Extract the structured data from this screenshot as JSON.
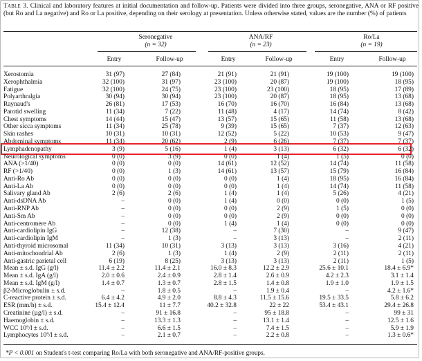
{
  "caption": {
    "label": "Table 3.",
    "text": "Clinical and laboratory features at initial documentation and follow-up. Patients were divided into three groups, seronegative, ANA or RF positive (but Ro and La negative) and Ro or La positive, depending on their serology at presentation. Unless otherwise stated, values are the number (%) of patients"
  },
  "groups": [
    {
      "name": "Seronegative",
      "n": "(n = 32)"
    },
    {
      "name": "ANA/RF",
      "n": "(n = 23)"
    },
    {
      "name": "Ro/La",
      "n": "(n = 19)"
    }
  ],
  "subheaders": [
    "Entry",
    "Follow-up",
    "Entry",
    "Follow-up",
    "Entry",
    "Follow-up"
  ],
  "rows": [
    {
      "label": "Xerostomia",
      "values": [
        "31 (97)",
        "27 (84)",
        "21 (91)",
        "21 (91)",
        "19 (100)",
        "19 (100)"
      ]
    },
    {
      "label": "Xerophthalmia",
      "values": [
        "32 (100)",
        "31 (97)",
        "23 (100)",
        "20 (87)",
        "19 (100)",
        "18 (95)"
      ]
    },
    {
      "label": "Fatigue",
      "values": [
        "32 (100)",
        "24 (75)",
        "23 (100)",
        "23 (100)",
        "18 (95)",
        "17 (89)"
      ]
    },
    {
      "label": "Polyarthralgia",
      "values": [
        "30 (94)",
        "30 (94)",
        "23 (100)",
        "20 (87)",
        "18 (95)",
        "13 (68)"
      ]
    },
    {
      "label": "Raynaud's",
      "values": [
        "26 (81)",
        "17 (53)",
        "16 (70)",
        "16 (70)",
        "16 (84)",
        "13 (68)"
      ]
    },
    {
      "label": "Parotid swelling",
      "values": [
        "11 (34)",
        "7 (22)",
        "11 (48)",
        "4 (17)",
        "14 (74)",
        "8 (42)"
      ]
    },
    {
      "label": "Chest symptoms",
      "values": [
        "14 (44)",
        "15 (47)",
        "13 (57)",
        "15 (65)",
        "11 (58)",
        "13 (68)"
      ]
    },
    {
      "label": "Other sicca symptoms",
      "values": [
        "11 (34)",
        "25 (78)",
        "9 (39)",
        "15 (65)",
        "7 (37)",
        "12 (63)"
      ]
    },
    {
      "label": "Skin rashes",
      "values": [
        "10 (31)",
        "10 (31)",
        "12 (52)",
        "5 (22)",
        "10 (53)",
        "9 (47)"
      ]
    },
    {
      "label": "Abdominal symptoms",
      "values": [
        "11 (34)",
        "20 (62)",
        "2 (9)",
        "6 (26)",
        "7 (37)",
        "7 (37)"
      ]
    },
    {
      "label": "Lymphadenopathy",
      "values": [
        "3 (9)",
        "5 (16)",
        "1 (4)",
        "3 (13)",
        "6 (32)",
        "6 (32)"
      ]
    },
    {
      "label": "Neurological symptoms",
      "values": [
        "0 (0)",
        "3 (9)",
        "0 (0)",
        "1 (4)",
        "1 (5)",
        "0 (0)"
      ]
    },
    {
      "label": "ANA (>1/40)",
      "values": [
        "0 (0)",
        "0 (0)",
        "14 (61)",
        "12 (52)",
        "14 (74)",
        "11 (58)"
      ]
    },
    {
      "label": "RF (>1/40)",
      "values": [
        "0 (0)",
        "1 (3)",
        "14 (61)",
        "13 (57)",
        "15 (79)",
        "16 (84)"
      ]
    },
    {
      "label": "Anti-Ro Ab",
      "values": [
        "0 (0)",
        "0 (0)",
        "0 (0)",
        "1 (4)",
        "18 (95)",
        "16 (84)"
      ]
    },
    {
      "label": "Anti-La Ab",
      "values": [
        "0 (0)",
        "0 (0)",
        "0 (0)",
        "1 (4)",
        "14 (74)",
        "11 (58)"
      ]
    },
    {
      "label": "Salivary gland Ab",
      "values": [
        "2 (6)",
        "2 (6)",
        "1 (4)",
        "1 (4)",
        "5 (26)",
        "4 (21)"
      ]
    },
    {
      "label": "Anti-dsDNA Ab",
      "values": [
        "–",
        "0 (0)",
        "1 (4)",
        "0 (0)",
        "0 (0)",
        "1 (5)"
      ]
    },
    {
      "label": "Anti-RNP Ab",
      "values": [
        "–",
        "0 (0)",
        "0 (0)",
        "2 (9)",
        "1 (5)",
        "0 (0)"
      ]
    },
    {
      "label": "Anti-Sm Ab",
      "values": [
        "–",
        "0 (0)",
        "0 (0)",
        "2 (9)",
        "0 (0)",
        "0 (0)"
      ]
    },
    {
      "label": "Anti-centromere Ab",
      "values": [
        "–",
        "0 (0)",
        "1 (4)",
        "1 (4)",
        "0 (0)",
        "0 (0)"
      ]
    },
    {
      "label": "Anti-cardiolipin IgG",
      "values": [
        "–",
        "12 (38)",
        "–",
        "7 (30)",
        "–",
        "9 (47)"
      ]
    },
    {
      "label": "Anti-cardiolipin IgM",
      "values": [
        "–",
        "1 (3)",
        "–",
        "3 (13)",
        "–",
        "2 (11)"
      ]
    },
    {
      "label": "Anti-thyroid microsomal",
      "values": [
        "11 (34)",
        "10 (31)",
        "3 (13)",
        "3 (13)",
        "3 (16)",
        "4 (21)"
      ]
    },
    {
      "label": "Anti-mitochondrial Ab",
      "values": [
        "2 (6)",
        "1 (3)",
        "1 (4)",
        "2 (9)",
        "2 (11)",
        "2 (11)"
      ]
    },
    {
      "label": "Anti-gastric parietal cell",
      "values": [
        "6 (19)",
        "8 (25)",
        "3 (13)",
        "3 (13)",
        "2 (11)",
        "1 (5)"
      ]
    },
    {
      "label": "Mean ± s.d. IgG (g/l)",
      "values": [
        "11.4 ± 2.2",
        "11.4 ± 2.1",
        "16.0 ± 8.3",
        "12.2 ± 2.9",
        "25.6 ± 10.1",
        "18.4 ± 6.9*"
      ]
    },
    {
      "label": "Mean ± s.d. IgA (g/l)",
      "values": [
        "2.0 ± 0.6",
        "2.4 ± 0.9",
        "2.8 ± 1.4",
        "2.6 ± 0.9",
        "4.2 ± 2.3",
        "3.1 ± 1.4"
      ]
    },
    {
      "label": "Mean ± s.d. IgM (g/l)",
      "values": [
        "1.4 ± 0.7",
        "1.3 ± 0.7",
        "2.8 ± 1.5",
        "1.4 ± 0.8",
        "1.9 ± 1.0",
        "1.9 ± 1.5"
      ]
    },
    {
      "label": "β2-Microglobulin ± s.d.",
      "values": [
        "–",
        "1.8 ± 0.5",
        "–",
        "1.9 ± 0.4",
        "–",
        "4.2 ± 1.6*"
      ]
    },
    {
      "label": "C-reactive protein ± s.d.",
      "values": [
        "6.4 ± 4.2",
        "4.9 ± 2.0",
        "8.8 ± 4.3",
        "11.5 ± 15.6",
        "19.5 ± 33.5",
        "5.8 ± 6.2"
      ]
    },
    {
      "label": "ESR (mm/h) ± s.d.",
      "values": [
        "15.4 ± 12.4",
        "11 ± 7.7",
        "40.2 ± 32.8",
        "22 ± 22",
        "53.4 ± 43.1",
        "29.4 ± 26.8"
      ]
    },
    {
      "label": "Creatinine (µg/l) ± s.d.",
      "values": [
        "–",
        "91 ± 16.8",
        "–",
        "95 ± 18.8",
        "–",
        "99 ± 31"
      ]
    },
    {
      "label": "Haemoglobin ± s.d.",
      "values": [
        "–",
        "13.3 ± 1.3",
        "–",
        "13.1 ± 1.4",
        "–",
        "12.5 ± 1.6"
      ]
    },
    {
      "label": "WCC 10⁹/l ± s.d.",
      "values": [
        "–",
        "6.6 ± 1.5",
        "–",
        "7.4 ± 1.5",
        "–",
        "5.9 ± 1.9"
      ]
    },
    {
      "label": "Lymphocytes 10⁹/l ± s.d.",
      "values": [
        "–",
        "2.1 ± 0.7",
        "–",
        "2.2 ± 0.8",
        "–",
        "1.3 ± 0.6*"
      ]
    }
  ],
  "highlighted_row": "Lymphadenopathy",
  "footnote": {
    "marker": "*P < 0.001",
    "text": " on Student's t-test comparing Ro/La with both seronegative and ANA/RF-positive groups."
  },
  "colors": {
    "highlight_border": "#e8202a",
    "rule": "#222222",
    "frame": "#b8b8b8"
  }
}
